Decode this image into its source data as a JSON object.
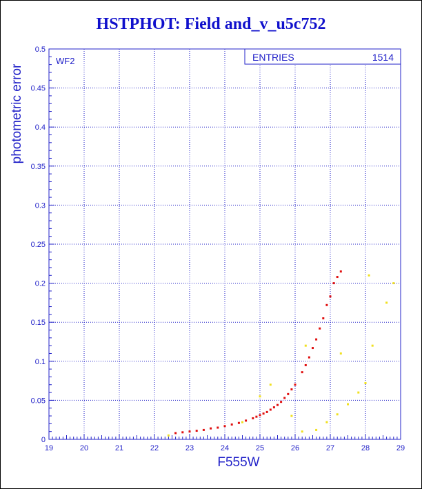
{
  "title": "HSTPHOT: Field and_v_u5c752",
  "colors": {
    "axis": "#2020c8",
    "grid": "#2020c8",
    "text": "#2020c8",
    "title": "#1010cc",
    "series_main": "#e01010",
    "series_secondary": "#f0e020"
  },
  "chart_data": {
    "type": "scatter",
    "title": "HSTPHOT: Field and_v_u5c752",
    "xlabel": "F555W",
    "ylabel": "photometric error",
    "xlim": [
      19,
      29
    ],
    "ylim": [
      0,
      0.5
    ],
    "x_ticks": [
      "19",
      "20",
      "21",
      "22",
      "23",
      "24",
      "25",
      "26",
      "27",
      "28",
      "29"
    ],
    "y_ticks": [
      "0",
      "0.05",
      "0.1",
      "0.15",
      "0.2",
      "0.25",
      "0.3",
      "0.35",
      "0.4",
      "0.45",
      "0.5"
    ],
    "grid": true,
    "panel_label": "WF2",
    "stats_box": {
      "label": "ENTRIES",
      "value": "1514",
      "position": "top-right"
    },
    "series": [
      {
        "color": "#e01010",
        "points": [
          [
            22.6,
            0.008
          ],
          [
            22.8,
            0.009
          ],
          [
            23.0,
            0.01
          ],
          [
            23.2,
            0.011
          ],
          [
            23.4,
            0.012
          ],
          [
            23.6,
            0.014
          ],
          [
            23.8,
            0.015
          ],
          [
            24.0,
            0.017
          ],
          [
            24.2,
            0.019
          ],
          [
            24.4,
            0.021
          ],
          [
            24.6,
            0.024
          ],
          [
            24.8,
            0.027
          ],
          [
            25.0,
            0.031
          ],
          [
            25.2,
            0.035
          ],
          [
            25.4,
            0.041
          ],
          [
            25.6,
            0.048
          ],
          [
            25.8,
            0.058
          ],
          [
            26.0,
            0.07
          ],
          [
            26.2,
            0.086
          ],
          [
            26.4,
            0.105
          ],
          [
            26.6,
            0.128
          ],
          [
            26.8,
            0.155
          ],
          [
            27.0,
            0.183
          ],
          [
            27.2,
            0.208
          ],
          [
            27.3,
            0.215
          ],
          [
            27.1,
            0.2
          ],
          [
            26.9,
            0.172
          ],
          [
            26.7,
            0.142
          ],
          [
            26.5,
            0.117
          ],
          [
            26.3,
            0.095
          ],
          [
            25.9,
            0.064
          ],
          [
            25.7,
            0.053
          ],
          [
            25.5,
            0.044
          ],
          [
            25.3,
            0.038
          ],
          [
            25.1,
            0.033
          ],
          [
            24.9,
            0.029
          ]
        ]
      },
      {
        "color": "#f0e020",
        "points": [
          [
            22.4,
            0.005
          ],
          [
            24.5,
            0.022
          ],
          [
            25.0,
            0.055
          ],
          [
            25.3,
            0.07
          ],
          [
            25.9,
            0.03
          ],
          [
            26.2,
            0.01
          ],
          [
            26.6,
            0.012
          ],
          [
            26.9,
            0.022
          ],
          [
            27.2,
            0.032
          ],
          [
            27.5,
            0.045
          ],
          [
            27.8,
            0.06
          ],
          [
            28.0,
            0.072
          ],
          [
            28.2,
            0.12
          ],
          [
            28.6,
            0.175
          ],
          [
            26.3,
            0.12
          ],
          [
            27.3,
            0.11
          ],
          [
            28.1,
            0.21
          ],
          [
            28.8,
            0.2
          ]
        ]
      }
    ]
  }
}
